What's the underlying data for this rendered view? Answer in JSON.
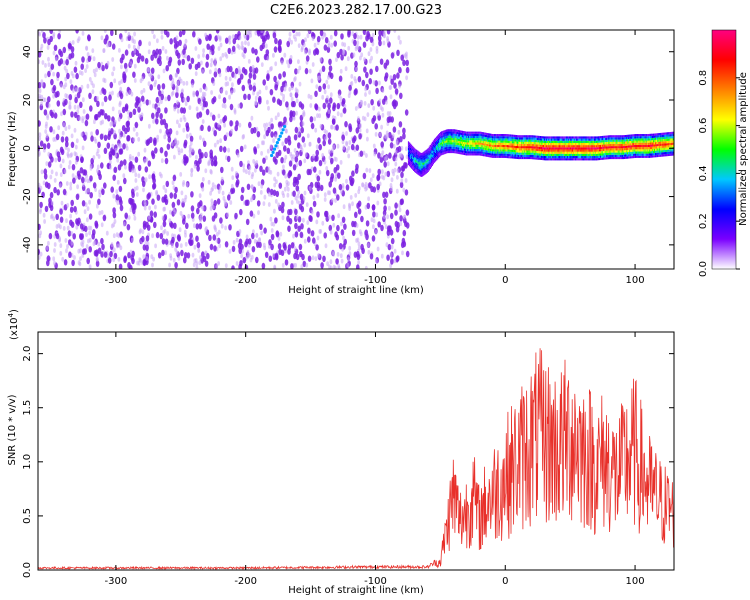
{
  "title": "C2E6.2023.282.17.00.G23",
  "colors": {
    "snr_line": "#e8302a",
    "speckle": "#7a1fe0",
    "background": "#ffffff"
  },
  "chart_data": [
    {
      "type": "heatmap",
      "name": "spectrogram",
      "xlabel": "Height of straight line (km)",
      "ylabel": "Frequency (Hz)",
      "xlim": [
        -360,
        130
      ],
      "ylim": [
        -50,
        49
      ],
      "x_ticks": [
        "-300",
        "-200",
        "-100",
        "0",
        "100"
      ],
      "y_ticks": [
        "40",
        "20",
        "0",
        "-20",
        "-40"
      ],
      "noise_region_x": [
        -360,
        -75
      ],
      "isolated_feature": {
        "x": [
          -180,
          -170
        ],
        "frequency_hz": [
          -3,
          9
        ]
      },
      "signal_trace": {
        "x": [
          -75,
          -70,
          -65,
          -60,
          -55,
          -50,
          -45,
          -40,
          -30,
          -20,
          -10,
          0,
          10,
          20,
          30,
          40,
          50,
          60,
          70,
          80,
          90,
          100,
          110,
          120,
          130
        ],
        "frequency_hz": [
          -2,
          -5,
          -7,
          -5,
          -1,
          2,
          3,
          3,
          2,
          2,
          1,
          1,
          0.5,
          0.5,
          0,
          0,
          0,
          0,
          0,
          0.5,
          0.5,
          1,
          1,
          1.5,
          2
        ],
        "normalized_amplitude": [
          0.3,
          0.4,
          0.45,
          0.4,
          0.35,
          0.5,
          0.55,
          0.6,
          0.65,
          0.7,
          0.75,
          0.8,
          0.85,
          0.9,
          0.95,
          0.95,
          0.95,
          0.95,
          0.95,
          0.9,
          0.9,
          0.9,
          0.9,
          0.85,
          0.8
        ]
      },
      "colorbar": {
        "label": "Normalized spectral amplitude",
        "range": [
          0,
          1
        ],
        "ticks": [
          "0.0",
          "0.2",
          "0.4",
          "0.6",
          "0.8"
        ],
        "colors": [
          "#ffffff",
          "#7a00ff",
          "#0000ff",
          "#00c8ff",
          "#00ff00",
          "#ffff00",
          "#ff8000",
          "#ff0000",
          "#ff0080"
        ]
      },
      "grid": false
    },
    {
      "type": "line",
      "name": "snr",
      "xlabel": "Height of straight line (km)",
      "ylabel": "SNR (10 * v/v)",
      "scale_label": "(x10",
      "scale_exponent": "4",
      "scale_close": ")",
      "xlim": [
        -360,
        130
      ],
      "ylim": [
        0,
        2.2
      ],
      "x_ticks": [
        "-300",
        "-200",
        "-100",
        "0",
        "100"
      ],
      "y_ticks": [
        "0.0",
        "0.5",
        "1.0",
        "1.5",
        "2.0"
      ],
      "series": [
        {
          "x": [
            -360,
            -300,
            -200,
            -100,
            -60,
            -50,
            -45,
            -40,
            -35,
            -30,
            -25,
            -20,
            -15,
            -10,
            -5,
            0,
            5,
            10,
            15,
            20,
            25,
            30,
            35,
            40,
            45,
            50,
            55,
            60,
            65,
            70,
            75,
            80,
            85,
            90,
            95,
            100,
            105,
            110,
            115,
            120,
            125,
            130
          ],
          "values": [
            0.02,
            0.02,
            0.02,
            0.03,
            0.03,
            0.1,
            0.5,
            0.9,
            0.6,
            0.7,
            0.9,
            0.6,
            0.8,
            0.9,
            1.0,
            1.1,
            1.2,
            1.3,
            1.4,
            1.5,
            1.6,
            1.55,
            1.5,
            1.45,
            1.5,
            1.6,
            1.55,
            1.4,
            1.35,
            1.2,
            1.3,
            1.25,
            1.1,
            1.2,
            1.35,
            1.4,
            1.2,
            1.0,
            0.9,
            0.8,
            0.75,
            0.7
          ]
        }
      ],
      "grid": false
    }
  ]
}
